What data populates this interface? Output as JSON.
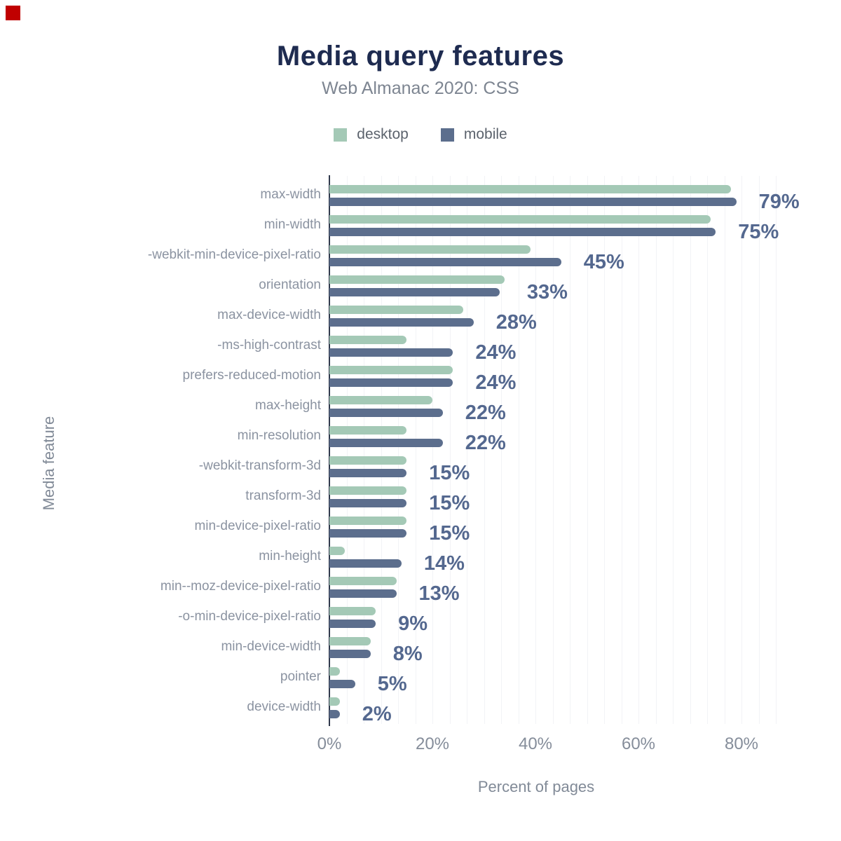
{
  "marker": {
    "color": "#c00000"
  },
  "header": {
    "title": "Media query features",
    "subtitle": "Web Almanac 2020: CSS",
    "title_color": "#1e2b50",
    "subtitle_color": "#7d8591"
  },
  "legend": {
    "items": [
      {
        "label": "desktop",
        "color": "#a4c9b6"
      },
      {
        "label": "mobile",
        "color": "#5c6e8d"
      }
    ],
    "text_color": "#5c636d"
  },
  "chart_data": {
    "type": "bar",
    "orientation": "horizontal",
    "title": "Media query features",
    "subtitle": "Web Almanac 2020: CSS",
    "xlabel": "Percent of pages",
    "ylabel": "Media feature",
    "xlim": [
      0,
      88
    ],
    "xtick_labels": [
      "0%",
      "20%",
      "40%",
      "60%",
      "80%"
    ],
    "xtick_values": [
      0,
      20,
      40,
      60,
      80
    ],
    "grid": "vertical-minor",
    "legend_position": "top",
    "categories": [
      "max-width",
      "min-width",
      "-webkit-min-device-pixel-ratio",
      "orientation",
      "max-device-width",
      "-ms-high-contrast",
      "prefers-reduced-motion",
      "max-height",
      "min-resolution",
      "-webkit-transform-3d",
      "transform-3d",
      "min-device-pixel-ratio",
      "min-height",
      "min--moz-device-pixel-ratio",
      "-o-min-device-pixel-ratio",
      "min-device-width",
      "pointer",
      "device-width"
    ],
    "series": [
      {
        "name": "desktop",
        "color": "#a4c9b6",
        "values": [
          78,
          74,
          39,
          34,
          26,
          15,
          24,
          20,
          15,
          15,
          15,
          15,
          3,
          13,
          9,
          8,
          2,
          2
        ]
      },
      {
        "name": "mobile",
        "color": "#5c6e8d",
        "values": [
          79,
          75,
          45,
          33,
          28,
          24,
          24,
          22,
          22,
          15,
          15,
          15,
          14,
          13,
          9,
          8,
          5,
          2
        ]
      }
    ],
    "value_labels": [
      "79%",
      "75%",
      "45%",
      "33%",
      "28%",
      "24%",
      "24%",
      "22%",
      "22%",
      "15%",
      "15%",
      "15%",
      "14%",
      "13%",
      "9%",
      "8%",
      "5%",
      "2%"
    ],
    "value_label_color": "#54688f"
  }
}
